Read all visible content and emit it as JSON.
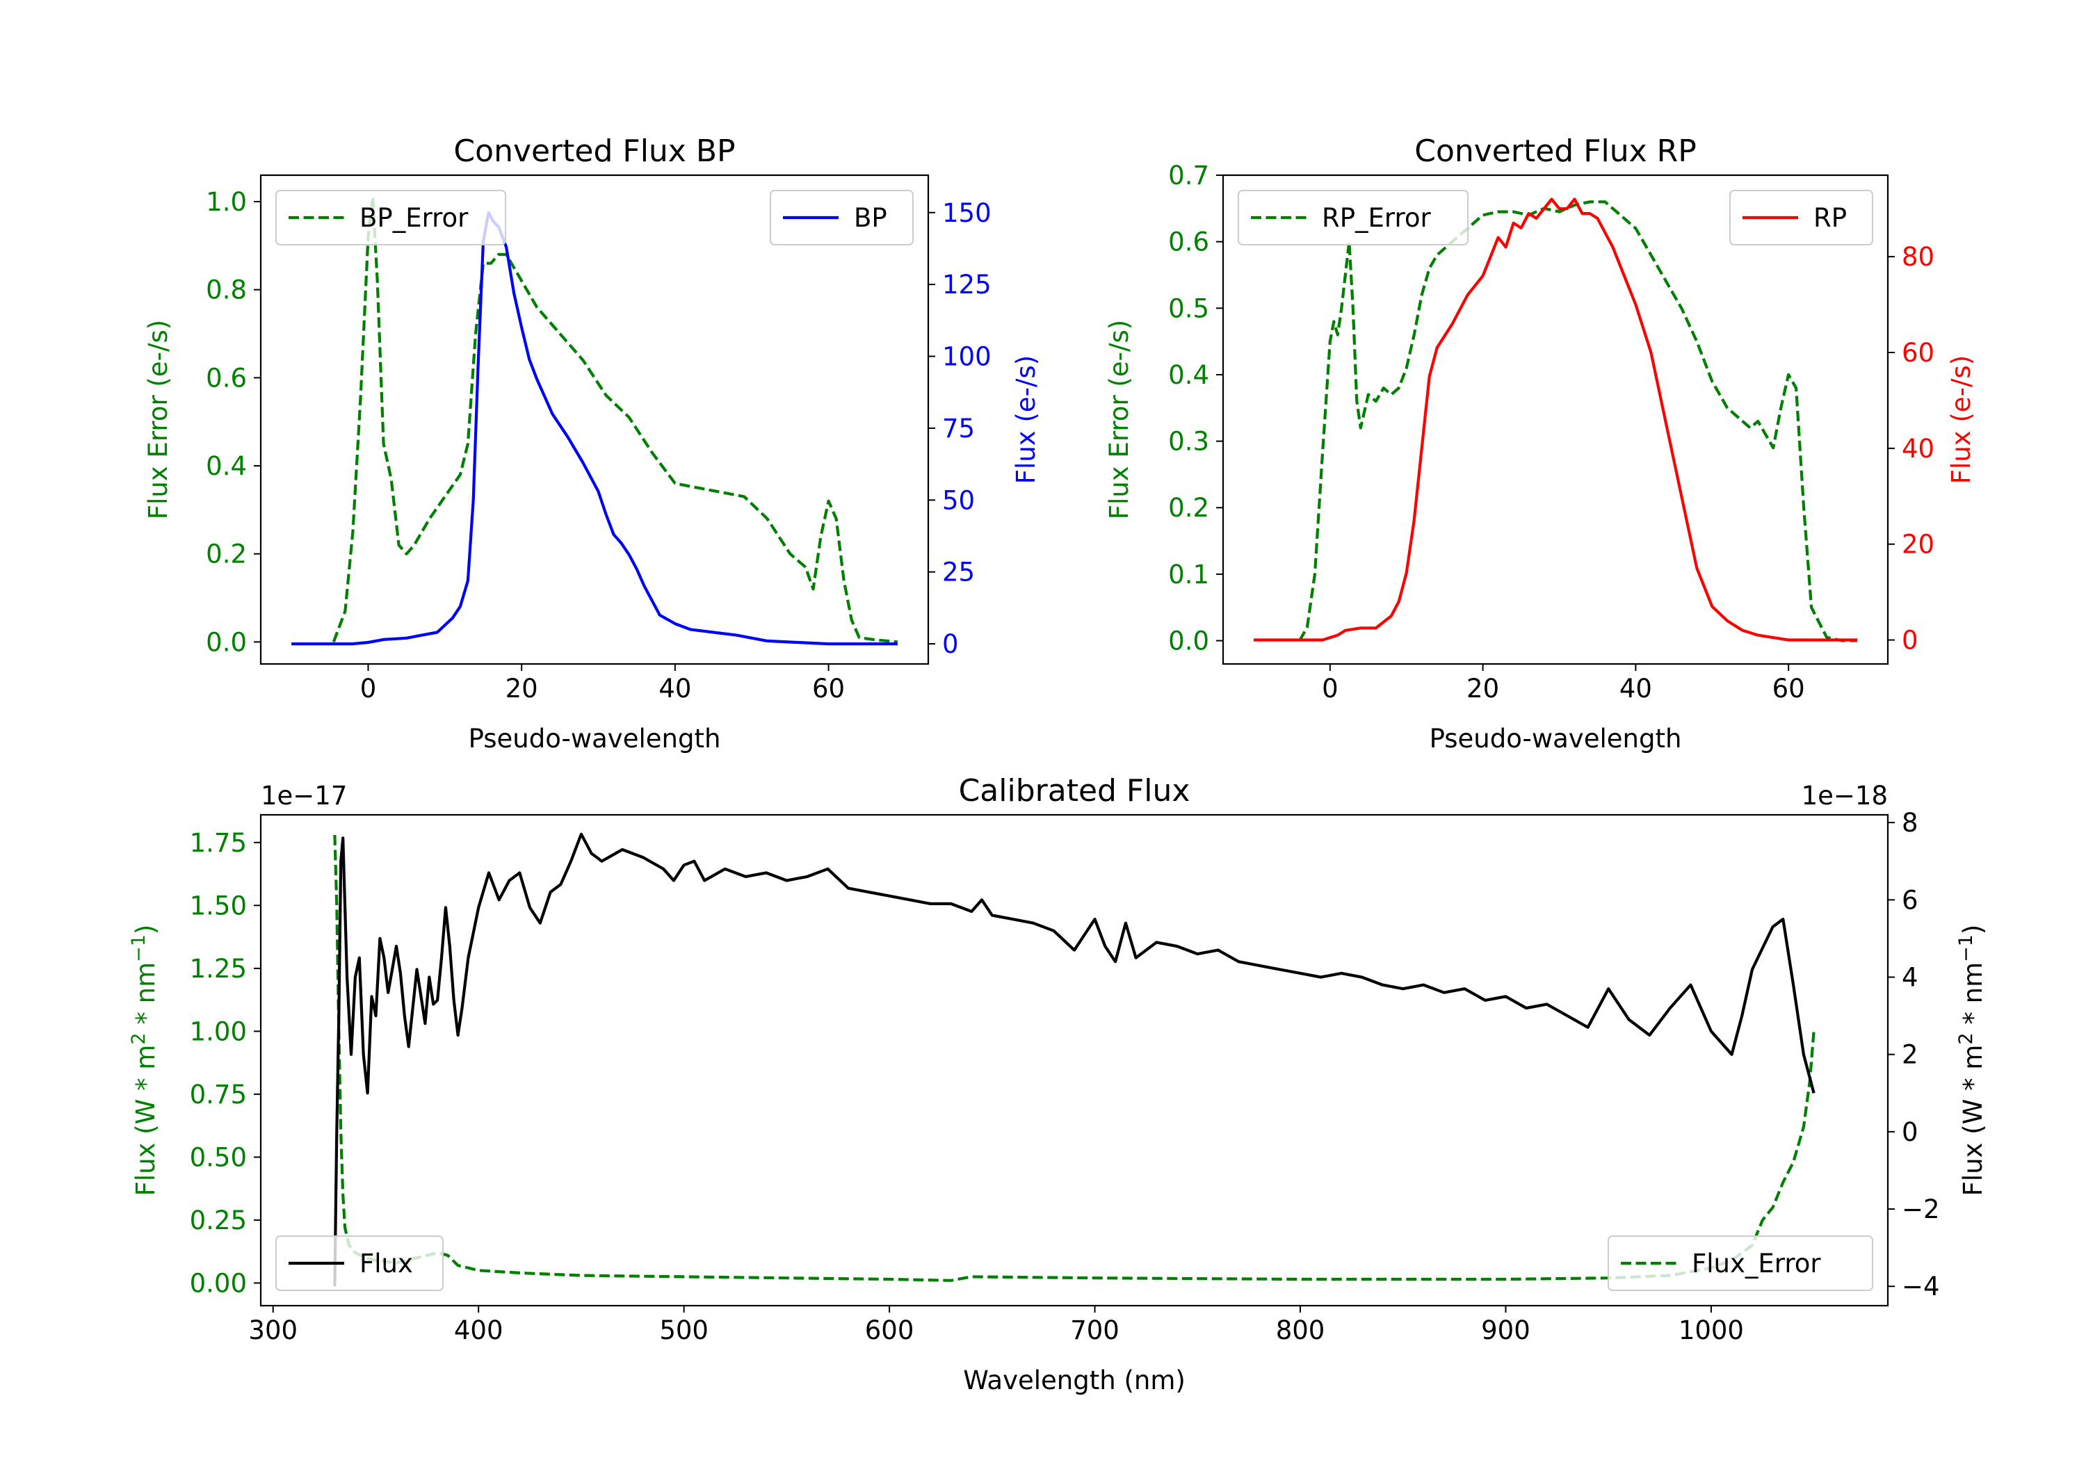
{
  "chart_data": [
    {
      "type": "line",
      "title": "Converted Flux BP",
      "xlabel": "Pseudo-wavelength",
      "ylabel_left": "Flux Error (e-/s)",
      "ylabel_right": "Flux (e-/s)",
      "xlim": [
        -14,
        73
      ],
      "ylim_left": [
        -0.05,
        1.06
      ],
      "ylim_right": [
        -7,
        163
      ],
      "xticks": [
        "0",
        "20",
        "40",
        "60"
      ],
      "yticks_left": [
        "0.0",
        "0.2",
        "0.4",
        "0.6",
        "0.8",
        "1.0"
      ],
      "yticks_right": [
        "0",
        "25",
        "50",
        "75",
        "100",
        "125",
        "150"
      ],
      "legend": {
        "left": "BP_Error",
        "right": "BP"
      },
      "colors": {
        "error": "#008000",
        "flux": "#0000ff",
        "left_axis": "#008000",
        "right_axis": "#0000ff"
      },
      "series": [
        {
          "name": "BP_Error",
          "axis": "left",
          "style": "dashed",
          "x": [
            -4.5,
            -3,
            -2,
            -1,
            0,
            0.6,
            1.2,
            2,
            3,
            4,
            5,
            6,
            8,
            10,
            12,
            13,
            14,
            15,
            16,
            17,
            18,
            20,
            22,
            25,
            28,
            31,
            34,
            37,
            40,
            43,
            46,
            49,
            52,
            55,
            57,
            58,
            59,
            60,
            61,
            62,
            63,
            64,
            66,
            69
          ],
          "y": [
            0,
            0.07,
            0.25,
            0.55,
            0.92,
            1.01,
            0.82,
            0.45,
            0.37,
            0.22,
            0.2,
            0.22,
            0.28,
            0.33,
            0.38,
            0.45,
            0.7,
            0.86,
            0.86,
            0.88,
            0.88,
            0.82,
            0.76,
            0.7,
            0.64,
            0.56,
            0.51,
            0.43,
            0.36,
            0.35,
            0.34,
            0.33,
            0.28,
            0.2,
            0.17,
            0.12,
            0.24,
            0.32,
            0.28,
            0.14,
            0.05,
            0.01,
            0.005,
            0
          ]
        },
        {
          "name": "BP",
          "axis": "right",
          "style": "solid",
          "x": [
            -10,
            -6,
            -2,
            0,
            2,
            5,
            7,
            9,
            11,
            12,
            13,
            13.7,
            14.3,
            15,
            15.7,
            16.3,
            17,
            18,
            19,
            20,
            21,
            22,
            23,
            24,
            26,
            28,
            30,
            31,
            32,
            33,
            34,
            35,
            36,
            37,
            38,
            40,
            42,
            45,
            48,
            52,
            56,
            60,
            64,
            69
          ],
          "y": [
            0,
            0,
            0,
            0.5,
            1.5,
            2,
            3,
            4,
            9,
            13,
            22,
            50,
            95,
            140,
            150,
            147,
            145,
            138,
            122,
            110,
            99,
            92,
            86,
            80,
            72,
            63,
            53,
            45,
            38,
            35,
            31,
            26,
            20,
            15,
            10,
            7,
            5,
            4,
            3,
            1,
            0.5,
            0,
            0,
            0
          ]
        }
      ]
    },
    {
      "type": "line",
      "title": "Converted Flux RP",
      "xlabel": "Pseudo-wavelength",
      "ylabel_left": "Flux Error (e-/s)",
      "ylabel_right": "Flux (e-/s)",
      "xlim": [
        -14,
        73
      ],
      "ylim_left": [
        -0.035,
        0.7
      ],
      "ylim_right": [
        -5,
        97
      ],
      "xticks": [
        "0",
        "20",
        "40",
        "60"
      ],
      "yticks_left": [
        "0.0",
        "0.1",
        "0.2",
        "0.3",
        "0.4",
        "0.5",
        "0.6",
        "0.7"
      ],
      "yticks_right": [
        "0",
        "20",
        "40",
        "60",
        "80"
      ],
      "legend": {
        "left": "RP_Error",
        "right": "RP"
      },
      "colors": {
        "error": "#008000",
        "flux": "#ff0000",
        "left_axis": "#008000",
        "right_axis": "#ff0000"
      },
      "series": [
        {
          "name": "RP_Error",
          "axis": "left",
          "style": "dashed",
          "x": [
            -4,
            -3,
            -2,
            -1,
            0,
            0.5,
            1,
            1.5,
            2,
            2.5,
            3,
            3.5,
            4,
            5,
            6,
            7,
            8,
            9,
            10,
            11,
            12,
            13,
            14,
            16,
            18,
            20,
            22,
            24,
            26,
            28,
            30,
            32,
            34,
            36,
            38,
            40,
            42,
            44,
            46,
            48,
            50,
            52,
            54,
            55,
            56,
            57,
            58,
            59,
            60,
            61,
            62,
            63,
            65,
            67,
            69
          ],
          "y": [
            0,
            0.02,
            0.1,
            0.28,
            0.45,
            0.48,
            0.46,
            0.5,
            0.55,
            0.6,
            0.5,
            0.36,
            0.32,
            0.37,
            0.36,
            0.38,
            0.37,
            0.38,
            0.41,
            0.46,
            0.52,
            0.56,
            0.58,
            0.6,
            0.62,
            0.64,
            0.645,
            0.645,
            0.64,
            0.65,
            0.645,
            0.655,
            0.66,
            0.66,
            0.64,
            0.62,
            0.58,
            0.54,
            0.5,
            0.45,
            0.39,
            0.35,
            0.33,
            0.32,
            0.33,
            0.31,
            0.29,
            0.35,
            0.4,
            0.38,
            0.2,
            0.05,
            0.005,
            0,
            0
          ]
        },
        {
          "name": "RP",
          "axis": "right",
          "style": "solid",
          "x": [
            -10,
            -4,
            -1,
            1,
            2,
            4,
            6,
            8,
            9,
            10,
            11,
            12,
            13,
            14,
            16,
            18,
            20,
            21,
            22,
            23,
            24,
            25,
            26,
            27,
            28,
            29,
            30,
            31,
            32,
            33,
            34,
            35,
            36,
            37,
            38,
            40,
            42,
            44,
            46,
            48,
            50,
            52,
            54,
            56,
            58,
            60,
            65,
            69
          ],
          "y": [
            0,
            0,
            0,
            1,
            2,
            2.5,
            2.5,
            5,
            8,
            14,
            25,
            40,
            55,
            61,
            66,
            72,
            76,
            80,
            84,
            82,
            87,
            86,
            89,
            88,
            90,
            92,
            90,
            90,
            92,
            89,
            89,
            88,
            85,
            82,
            78,
            70,
            60,
            45,
            30,
            15,
            7,
            4,
            2,
            1,
            0.5,
            0,
            0,
            0
          ]
        }
      ]
    },
    {
      "type": "line",
      "title": "Calibrated Flux",
      "xlabel": "Wavelength (nm)",
      "ylabel_left": "Flux (W * m2 * nm-1)",
      "ylabel_right": "Flux (W * m2 * nm-1)",
      "offset_left": "1e−17",
      "offset_right": "1e−18",
      "xlim": [
        294,
        1086
      ],
      "ylim_left": [
        -0.09,
        1.86
      ],
      "ylim_right": [
        -4.5,
        8.2
      ],
      "xticks": [
        "300",
        "400",
        "500",
        "600",
        "700",
        "800",
        "900",
        "1000"
      ],
      "yticks_left": [
        "0.00",
        "0.25",
        "0.50",
        "0.75",
        "1.00",
        "1.25",
        "1.50",
        "1.75"
      ],
      "yticks_right": [
        "−4",
        "−2",
        "0",
        "2",
        "4",
        "6",
        "8"
      ],
      "legend": {
        "left": "Flux",
        "right": "Flux_Error"
      },
      "colors": {
        "error": "#008000",
        "flux": "#000000",
        "left_axis": "#008000",
        "right_axis": "#000000"
      },
      "series": [
        {
          "name": "Flux_Error",
          "axis": "left",
          "style": "dashed",
          "x": [
            330,
            331,
            332,
            333,
            334,
            335,
            337,
            340,
            345,
            350,
            360,
            370,
            380,
            385,
            390,
            400,
            420,
            450,
            500,
            550,
            600,
            630,
            640,
            700,
            800,
            900,
            950,
            980,
            1000,
            1010,
            1020,
            1025,
            1030,
            1035,
            1040,
            1045,
            1048,
            1050
          ],
          "y": [
            1.78,
            1.5,
            1.0,
            0.6,
            0.35,
            0.22,
            0.15,
            0.12,
            0.1,
            0.09,
            0.08,
            0.1,
            0.12,
            0.11,
            0.07,
            0.05,
            0.04,
            0.03,
            0.025,
            0.02,
            0.015,
            0.01,
            0.025,
            0.02,
            0.015,
            0.015,
            0.02,
            0.03,
            0.06,
            0.09,
            0.15,
            0.25,
            0.3,
            0.4,
            0.48,
            0.62,
            0.8,
            1.0
          ]
        },
        {
          "name": "Flux",
          "axis": "right",
          "style": "solid",
          "x": [
            330,
            331,
            332,
            333,
            334,
            336,
            338,
            340,
            342,
            344,
            346,
            348,
            350,
            352,
            354,
            356,
            358,
            360,
            362,
            364,
            366,
            368,
            370,
            372,
            374,
            376,
            378,
            380,
            382,
            384,
            386,
            388,
            390,
            392,
            395,
            400,
            405,
            410,
            415,
            420,
            425,
            430,
            435,
            440,
            445,
            450,
            455,
            460,
            470,
            480,
            490,
            495,
            500,
            505,
            510,
            520,
            530,
            540,
            550,
            560,
            570,
            580,
            590,
            600,
            610,
            620,
            630,
            640,
            645,
            650,
            660,
            670,
            680,
            690,
            700,
            705,
            710,
            715,
            720,
            730,
            740,
            750,
            760,
            770,
            780,
            790,
            800,
            810,
            820,
            830,
            840,
            850,
            860,
            870,
            880,
            890,
            900,
            910,
            920,
            930,
            940,
            950,
            960,
            970,
            980,
            990,
            1000,
            1010,
            1015,
            1020,
            1030,
            1035,
            1040,
            1045,
            1050
          ],
          "y": [
            -4,
            0,
            3,
            7,
            7.6,
            4,
            2,
            4,
            4.5,
            2,
            1,
            3.5,
            3,
            5,
            4.5,
            3.6,
            4.2,
            4.8,
            4.1,
            3,
            2.2,
            3.2,
            4.2,
            3.5,
            2.8,
            4,
            3.3,
            3.4,
            4.5,
            5.8,
            4.8,
            3.4,
            2.5,
            3.2,
            4.5,
            5.8,
            6.7,
            6,
            6.5,
            6.7,
            5.8,
            5.4,
            6.2,
            6.4,
            7,
            7.7,
            7.2,
            7.0,
            7.3,
            7.1,
            6.8,
            6.5,
            6.9,
            7.0,
            6.5,
            6.8,
            6.6,
            6.7,
            6.5,
            6.6,
            6.8,
            6.3,
            6.2,
            6.1,
            6.0,
            5.9,
            5.9,
            5.7,
            6.0,
            5.6,
            5.5,
            5.4,
            5.2,
            4.7,
            5.5,
            4.8,
            4.4,
            5.4,
            4.5,
            4.9,
            4.8,
            4.6,
            4.7,
            4.4,
            4.3,
            4.2,
            4.1,
            4.0,
            4.1,
            4.0,
            3.8,
            3.7,
            3.8,
            3.6,
            3.7,
            3.4,
            3.5,
            3.2,
            3.3,
            3.0,
            2.7,
            3.7,
            2.9,
            2.5,
            3.2,
            3.8,
            2.6,
            2.0,
            3.0,
            4.2,
            5.3,
            5.5,
            3.8,
            2,
            1
          ]
        }
      ]
    }
  ]
}
